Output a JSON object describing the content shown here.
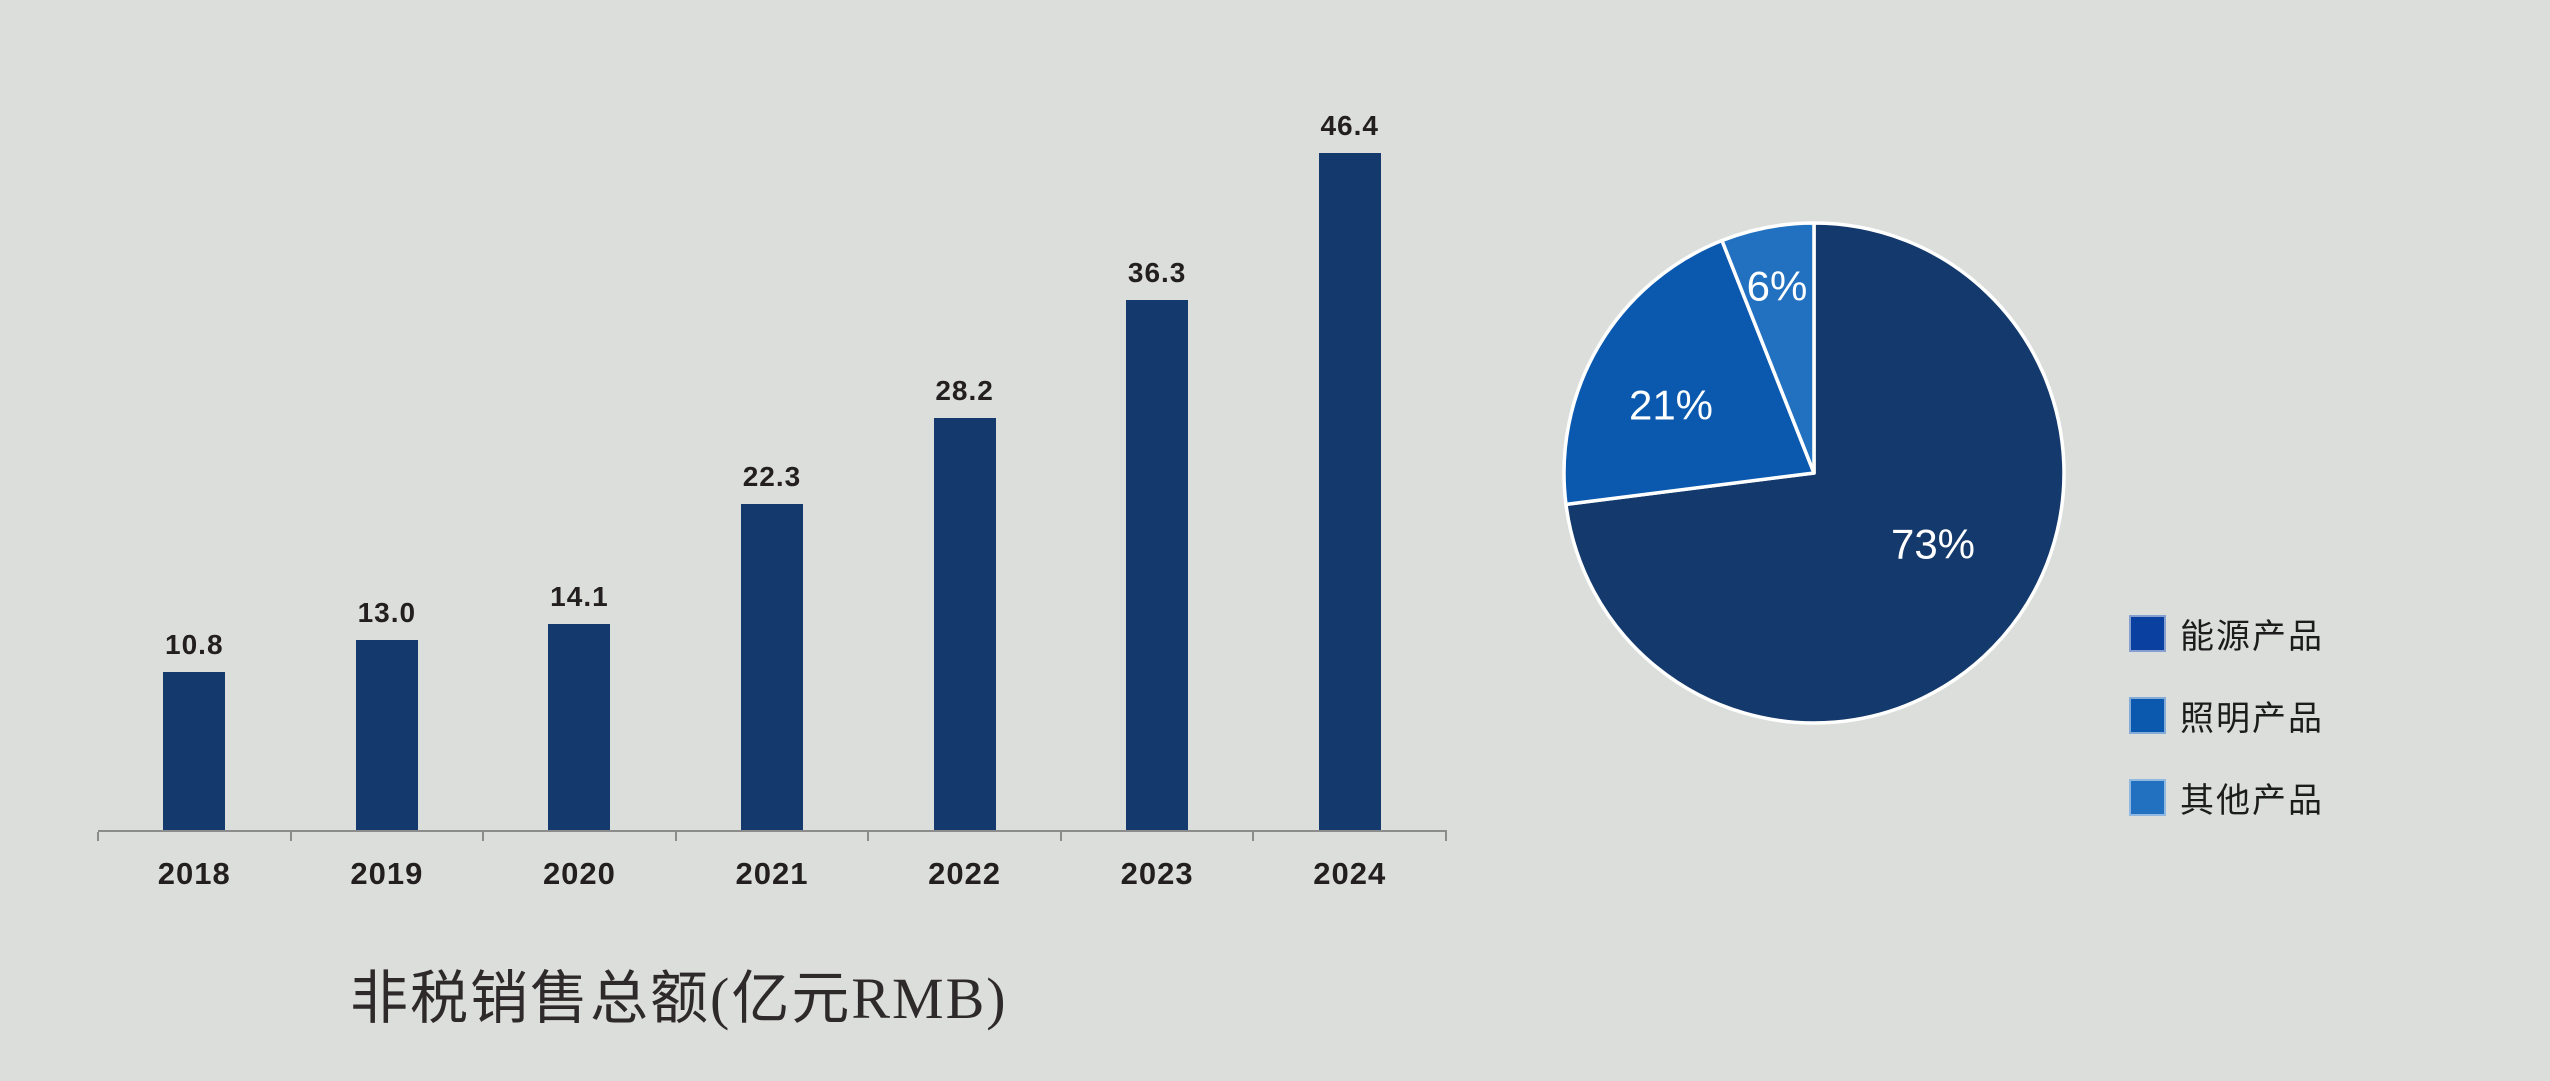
{
  "background_color": "#DCDEDB",
  "chart_data": [
    {
      "type": "bar",
      "title": "非税销售总额(亿元RMB)",
      "categories": [
        "2018",
        "2019",
        "2020",
        "2021",
        "2022",
        "2023",
        "2024"
      ],
      "values": [
        10.8,
        13.0,
        14.1,
        22.3,
        28.2,
        36.3,
        46.4
      ],
      "value_labels": [
        "10.8",
        "13.0",
        "14.1",
        "22.3",
        "28.2",
        "36.3",
        "46.4"
      ],
      "xlabel": "",
      "ylabel": "",
      "ylim": [
        0,
        50
      ],
      "grid": false,
      "bar_color": "#14396C",
      "value_label_color": "#231F20",
      "axis_color": "#8C8C8C"
    },
    {
      "type": "pie",
      "labels": [
        "能源产品",
        "照明产品",
        "其他产品"
      ],
      "values": [
        73,
        21,
        6
      ],
      "percent_labels": [
        "73%",
        "21%",
        "6%"
      ],
      "slice_colors": [
        "#14396C",
        "#0A59AF",
        "#2171C0"
      ],
      "legend_colors": [
        "#0A41A1",
        "#0A59AF",
        "#2171C0"
      ],
      "label_color": "#FFFFFF",
      "legend_position": "right",
      "start_angle_deg": 0,
      "direction": "clockwise"
    }
  ]
}
